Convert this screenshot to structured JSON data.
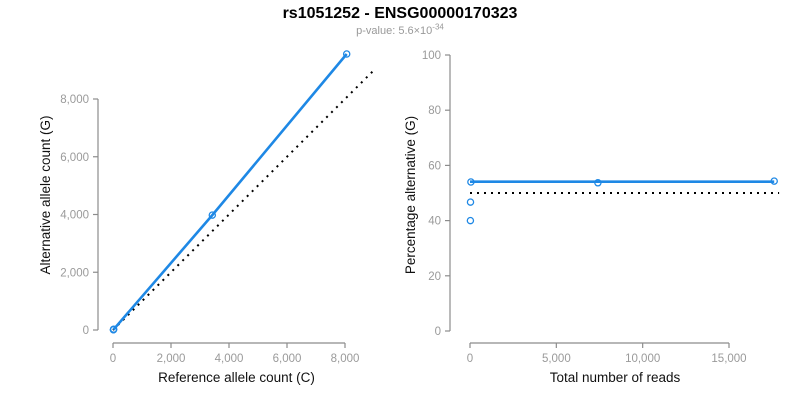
{
  "header": {
    "title": "rs1051252 - ENSG00000170323",
    "subtitle_prefix": "p-value: 5.6×10",
    "subtitle_exponent": "-34"
  },
  "colors": {
    "accent_blue": "#1E88E5",
    "axis_line": "#8c8c8c",
    "tick_label": "#9a9a9a",
    "axis_title": "#111111",
    "dotted_line": "#000000",
    "title_text": "#000000",
    "subtitle_text": "#999999"
  },
  "chart_data": [
    {
      "type": "scatter",
      "title": "",
      "xlabel": "Reference allele count (C)",
      "ylabel": "Alternative allele count (G)",
      "xlim": [
        0,
        9050
      ],
      "ylim": [
        0,
        9800
      ],
      "grid": false,
      "legend": "none",
      "xticks": [
        0,
        2000,
        4000,
        6000,
        8000
      ],
      "xtick_labels": [
        "0",
        "2,000",
        "4,000",
        "6,000",
        "8,000"
      ],
      "yticks": [
        0,
        2000,
        4000,
        6000,
        8000
      ],
      "ytick_labels": [
        "0",
        "2,000",
        "4,000",
        "6,000",
        "8,000"
      ],
      "points": [
        [
          15,
          10
        ],
        [
          16,
          14
        ],
        [
          23,
          27
        ],
        [
          3425,
          3980
        ],
        [
          8060,
          9560
        ]
      ],
      "solid_line": {
        "name": "fitted-line",
        "points": [
          [
            15,
            10
          ],
          [
            3425,
            3980
          ],
          [
            8060,
            9560
          ]
        ]
      },
      "dotted_line": {
        "name": "identity-line",
        "points": [
          [
            0,
            0
          ],
          [
            9800,
            9800
          ]
        ]
      }
    },
    {
      "type": "scatter",
      "title": "",
      "xlabel": "Total number of reads",
      "ylabel": "Percentage alternative (G)",
      "xlim": [
        0,
        17900
      ],
      "ylim": [
        0,
        100
      ],
      "grid": false,
      "legend": "none",
      "xticks": [
        0,
        5000,
        10000,
        15000
      ],
      "xtick_labels": [
        "0",
        "5,000",
        "10,000",
        "15,000"
      ],
      "yticks": [
        0,
        20,
        40,
        60,
        80,
        100
      ],
      "ytick_labels": [
        "0",
        "20",
        "40",
        "60",
        "80",
        "100"
      ],
      "points": [
        [
          25,
          40
        ],
        [
          30,
          46.7
        ],
        [
          50,
          54
        ],
        [
          7405,
          53.7
        ],
        [
          17620,
          54.3
        ]
      ],
      "solid_line": {
        "name": "fitted-percentage-line",
        "points": [
          [
            0,
            54.1
          ],
          [
            17620,
            54.1
          ]
        ]
      },
      "dotted_line": {
        "name": "null-50-percent-line",
        "points": [
          [
            0,
            50
          ],
          [
            17900,
            50
          ]
        ]
      }
    }
  ]
}
